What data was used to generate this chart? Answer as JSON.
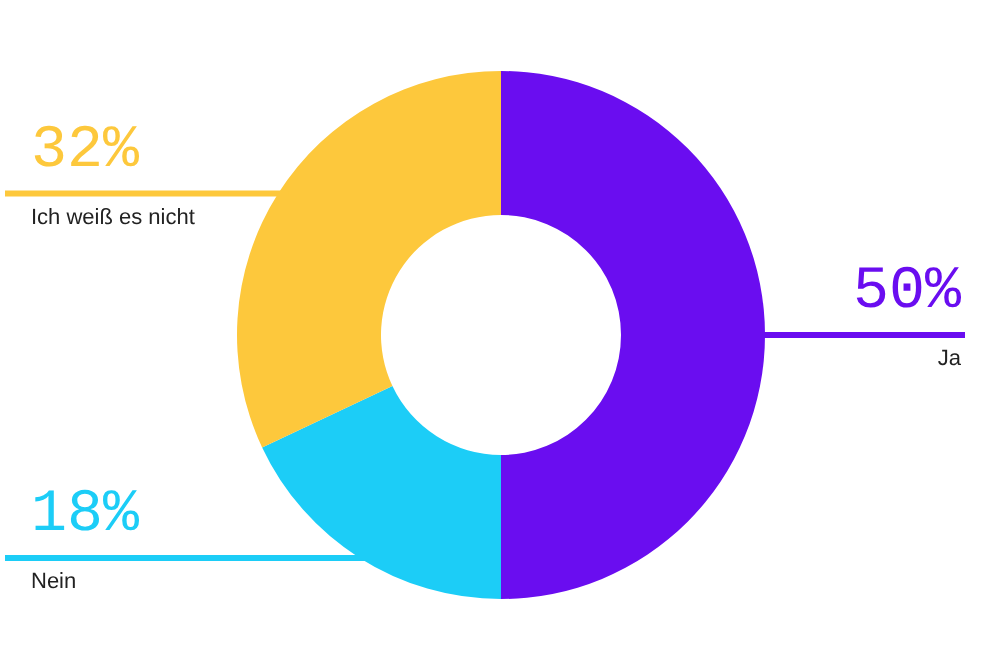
{
  "chart_data": {
    "type": "donut",
    "categories": [
      "Ja",
      "Nein",
      "Ich weiß es nicht"
    ],
    "values": [
      50,
      18,
      32
    ],
    "colors": [
      "#6a0df0",
      "#1ccdf7",
      "#fdc83c"
    ],
    "value_labels": [
      "50%",
      "18%",
      "32%"
    ]
  }
}
